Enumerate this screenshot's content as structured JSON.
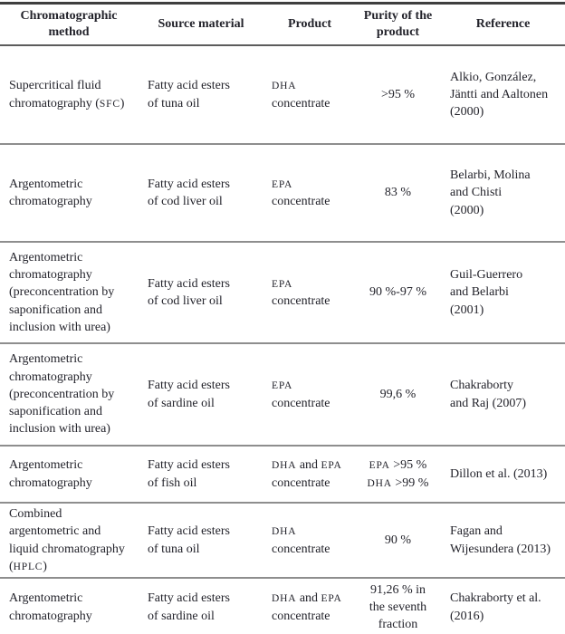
{
  "page": {
    "background": "#ffffff",
    "text_color": "#23232b",
    "outer_rule_color": "#3f3f3f",
    "header_rule_color": "#5c5c5c",
    "inner_rule_color": "#8e8e8e"
  },
  "smallcaps_terms": [
    "HPLC",
    "SFC",
    "DHA",
    "EPA"
  ],
  "table": {
    "headers": [
      "Chromatographic\nmethod",
      "Source material",
      "Product",
      "Purity of the\nproduct",
      "Reference"
    ],
    "rows": [
      {
        "method": "Supercritical fluid\nchromatography (SFC)",
        "source": "Fatty acid esters\nof tuna oil",
        "product": "DHA\nconcentrate",
        "purity": ">95 %",
        "reference": "Alkio, González,\nJäntti and Aaltonen\n(2000)"
      },
      {
        "method": "Argentometric\nchromatography",
        "source": "Fatty acid esters\nof cod liver oil",
        "product": "EPA\nconcentrate",
        "purity": "83 %",
        "reference": "Belarbi, Molina\nand Chisti\n(2000)"
      },
      {
        "method": "Argentometric\nchromatography\n(preconcentration by\nsaponification and\ninclusion with urea)",
        "source": "Fatty acid esters\nof cod liver oil",
        "product": "EPA\nconcentrate",
        "purity": "90 %-97 %",
        "reference": "Guil-Guerrero\nand Belarbi\n(2001)"
      },
      {
        "method": "Argentometric\nchromatography\n(preconcentration by\nsaponification and\ninclusion with urea)",
        "source": "Fatty acid esters\nof sardine oil",
        "product": "EPA\nconcentrate",
        "purity": "99,6 %",
        "reference": "Chakraborty\nand Raj (2007)"
      },
      {
        "method": "Argentometric\nchromatography",
        "source": "Fatty acid esters\nof fish oil",
        "product": "DHA and EPA\nconcentrate",
        "purity": "EPA >95 %\nDHA >99 %",
        "reference": "Dillon et al. (2013)"
      },
      {
        "method": "Combined\nargentometric and\nliquid chromatography\n(HPLC)",
        "source": "Fatty acid esters\nof tuna oil",
        "product": "DHA\nconcentrate",
        "purity": "90 %",
        "reference": "Fagan and\nWijesundera (2013)"
      },
      {
        "method": "Argentometric\nchromatography",
        "source": "Fatty acid esters\nof sardine oil",
        "product": "DHA and EPA\nconcentrate",
        "purity": "91,26 % in\nthe seventh\nfraction",
        "reference": "Chakraborty et al.\n(2016)"
      }
    ]
  }
}
